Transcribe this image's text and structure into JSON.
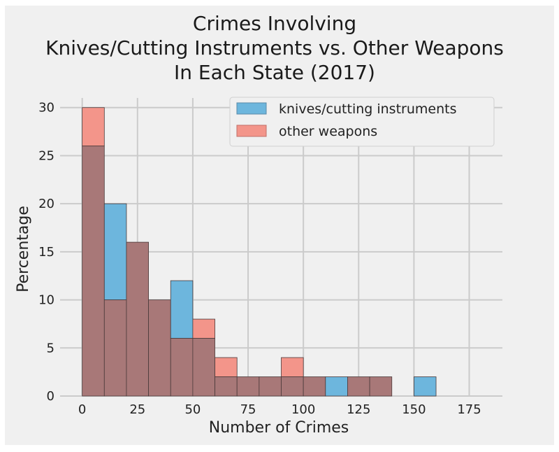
{
  "chart_data": {
    "type": "bar",
    "subtype": "overlapping-histogram",
    "title_lines": [
      "Crimes Involving",
      "Knives/Cutting Instruments vs. Other Weapons",
      "In Each State (2017)"
    ],
    "xlabel": "Number of Crimes",
    "ylabel": "Percentage",
    "xlim": [
      -10,
      190
    ],
    "ylim": [
      0,
      31
    ],
    "x_ticks": [
      0,
      25,
      50,
      75,
      100,
      125,
      150,
      175
    ],
    "y_ticks": [
      0,
      5,
      10,
      15,
      20,
      25,
      30
    ],
    "grid": true,
    "legend_position": "top-right",
    "bin_edges": [
      0,
      10,
      20,
      30,
      40,
      50,
      60,
      70,
      80,
      90,
      100,
      110,
      120,
      130,
      140,
      150,
      160
    ],
    "series": [
      {
        "name": "knives/cutting instruments",
        "color": "#6db6dd",
        "values": [
          26,
          20,
          16,
          10,
          12,
          6,
          2,
          2,
          2,
          2,
          2,
          2,
          2,
          2,
          0,
          2
        ]
      },
      {
        "name": "other weapons",
        "color": "#f3958a",
        "values": [
          30,
          10,
          16,
          10,
          6,
          8,
          4,
          2,
          2,
          4,
          2,
          0,
          2,
          2,
          0,
          0
        ]
      }
    ],
    "overlap_color": "#a87878"
  }
}
